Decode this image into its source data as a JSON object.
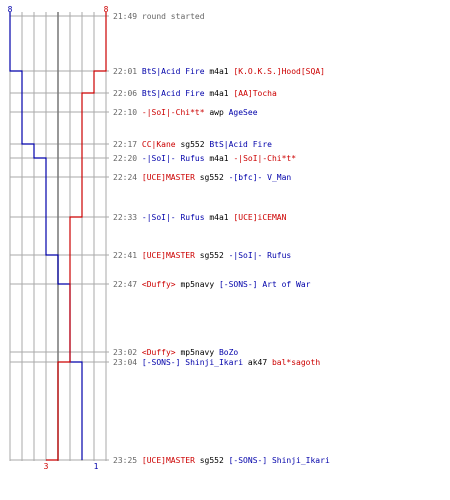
{
  "colors": {
    "team_blue": "#0000aa",
    "team_red": "#cc0000",
    "gridline": "#aaaaaa",
    "center_line": "#777777",
    "time_text": "#666666",
    "neutral_text": "#000000"
  },
  "chart_data": {
    "type": "line",
    "title": "",
    "x_axis": "player count (8 at top to 0)",
    "grid": true,
    "series": [
      {
        "team": "blue",
        "start_count": "8",
        "end_count": "1",
        "counts": [
          8,
          8,
          7,
          7,
          7,
          6,
          5,
          5,
          5,
          4,
          3,
          3,
          2,
          2,
          1
        ]
      },
      {
        "team": "red",
        "start_count": "8",
        "end_count": "3",
        "counts": [
          8,
          8,
          7,
          6,
          6,
          6,
          6,
          6,
          5,
          5,
          5,
          5,
          4,
          3,
          3
        ]
      }
    ],
    "events": [
      {
        "time": "21:49",
        "segments": [
          {
            "t": "round started",
            "c": "grey"
          }
        ]
      },
      {
        "time": "22:01",
        "segments": [
          {
            "t": "BtS|Acid Fire",
            "c": "blue"
          },
          {
            "t": "m4a1",
            "c": "neutral"
          },
          {
            "t": "[K.O.K.S.]Hood[SQA]",
            "c": "red"
          }
        ]
      },
      {
        "time": "22:06",
        "segments": [
          {
            "t": "BtS|Acid Fire",
            "c": "blue"
          },
          {
            "t": "m4a1",
            "c": "neutral"
          },
          {
            "t": "[AA]Tocha",
            "c": "red"
          }
        ]
      },
      {
        "time": "22:10",
        "segments": [
          {
            "t": "-|SoI|-Chi*t*",
            "c": "red"
          },
          {
            "t": "awp",
            "c": "neutral"
          },
          {
            "t": "AgeSee",
            "c": "blue"
          }
        ]
      },
      {
        "time": "22:17",
        "segments": [
          {
            "t": "CC|Kane",
            "c": "red"
          },
          {
            "t": "sg552",
            "c": "neutral"
          },
          {
            "t": "BtS|Acid Fire",
            "c": "blue"
          }
        ]
      },
      {
        "time": "22:20",
        "segments": [
          {
            "t": "-|SoI|- Rufus",
            "c": "blue"
          },
          {
            "t": "m4a1",
            "c": "neutral"
          },
          {
            "t": "-|SoI|-Chi*t*",
            "c": "red"
          }
        ]
      },
      {
        "time": "22:24",
        "segments": [
          {
            "t": "[UCE]MASTER",
            "c": "red"
          },
          {
            "t": "sg552",
            "c": "neutral"
          },
          {
            "t": "-[bfc]- V_Man",
            "c": "blue"
          }
        ]
      },
      {
        "time": "22:33",
        "segments": [
          {
            "t": "-|SoI|- Rufus",
            "c": "blue"
          },
          {
            "t": "m4a1",
            "c": "neutral"
          },
          {
            "t": "[UCE]iCEMAN",
            "c": "red"
          }
        ]
      },
      {
        "time": "22:41",
        "segments": [
          {
            "t": "[UCE]MASTER",
            "c": "red"
          },
          {
            "t": "sg552",
            "c": "neutral"
          },
          {
            "t": "-|SoI|- Rufus",
            "c": "blue"
          }
        ]
      },
      {
        "time": "22:47",
        "segments": [
          {
            "t": "<Duffy>",
            "c": "red"
          },
          {
            "t": "mp5navy",
            "c": "neutral"
          },
          {
            "t": "[-SONS-] Art of War",
            "c": "blue"
          }
        ]
      },
      {
        "time": "23:02",
        "segments": [
          {
            "t": "<Duffy>",
            "c": "red"
          },
          {
            "t": "mp5navy",
            "c": "neutral"
          },
          {
            "t": "BoZo",
            "c": "blue"
          }
        ]
      },
      {
        "time": "23:04",
        "segments": [
          {
            "t": "[-SONS-] Shinji_Ikari",
            "c": "blue"
          },
          {
            "t": "ak47",
            "c": "neutral"
          },
          {
            "t": "bal*sagoth",
            "c": "red"
          }
        ]
      },
      {
        "time": "23:25",
        "segments": [
          {
            "t": "[UCE]MASTER",
            "c": "red"
          },
          {
            "t": "sg552",
            "c": "neutral"
          },
          {
            "t": "[-SONS-] Shinji_Ikari",
            "c": "blue"
          }
        ]
      }
    ]
  }
}
